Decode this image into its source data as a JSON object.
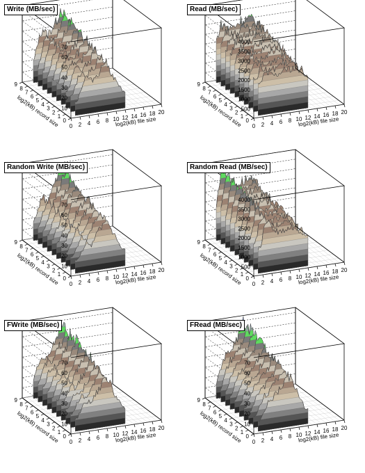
{
  "panels": [
    {
      "title": "Write (MB/sec)",
      "ytick_labels": [
        "10",
        "20",
        "30",
        "40",
        "50",
        "60",
        "70"
      ],
      "xtick_labels": [
        "0",
        "2",
        "4",
        "6",
        "8",
        "10",
        "12",
        "14",
        "16",
        "18",
        "20"
      ],
      "ztick_labels": [
        "0",
        "1",
        "2",
        "3",
        "4",
        "5",
        "6",
        "7",
        "8",
        "9"
      ],
      "xlabel": "log2(kB) file size",
      "ylabel": "log2(kB) record size"
    },
    {
      "title": "Read (MB/sec)",
      "ytick_labels": [
        "500",
        "1000",
        "1500",
        "2000",
        "2500",
        "3000",
        "3500",
        "4000"
      ],
      "xtick_labels": [
        "0",
        "2",
        "4",
        "6",
        "8",
        "10",
        "12",
        "14",
        "16",
        "18",
        "20"
      ],
      "ztick_labels": [
        "0",
        "1",
        "2",
        "3",
        "4",
        "5",
        "6",
        "7",
        "8",
        "9"
      ],
      "xlabel": "log2(kB) file size",
      "ylabel": "log2(kB) record size"
    },
    {
      "title": "Random Write (MB/sec)",
      "ytick_labels": [
        "10",
        "20",
        "30",
        "40",
        "50",
        "60",
        "70"
      ],
      "xtick_labels": [
        "0",
        "2",
        "4",
        "6",
        "8",
        "10",
        "12",
        "14",
        "16",
        "18",
        "20"
      ],
      "ztick_labels": [
        "0",
        "1",
        "2",
        "3",
        "4",
        "5",
        "6",
        "7",
        "8",
        "9"
      ],
      "xlabel": "log2(kB) file size",
      "ylabel": "log2(kB) record size"
    },
    {
      "title": "Random Read (MB/sec)",
      "ytick_labels": [
        "500",
        "1000",
        "1500",
        "2000",
        "2500",
        "3000",
        "3500",
        "4000"
      ],
      "xtick_labels": [
        "0",
        "2",
        "4",
        "6",
        "8",
        "10",
        "12",
        "14",
        "16",
        "18",
        "20"
      ],
      "ztick_labels": [
        "0",
        "1",
        "2",
        "3",
        "4",
        "5",
        "6",
        "7",
        "8",
        "9"
      ],
      "xlabel": "log2(kB) file size",
      "ylabel": "log2(kB) record size"
    },
    {
      "title": "FWrite (MB/sec)",
      "ytick_labels": [
        "10",
        "20",
        "30",
        "40",
        "50",
        "60",
        "70"
      ],
      "xtick_labels": [
        "0",
        "2",
        "4",
        "6",
        "8",
        "10",
        "12",
        "14",
        "16",
        "18",
        "20"
      ],
      "ztick_labels": [
        "0",
        "1",
        "2",
        "3",
        "4",
        "5",
        "6",
        "7",
        "8",
        "9"
      ],
      "xlabel": "log2(kB) file size",
      "ylabel": "log2(kB) record size"
    },
    {
      "title": "FRead (MB/sec)",
      "ytick_labels": [
        "10",
        "20",
        "30",
        "40",
        "50",
        "60",
        "70"
      ],
      "xtick_labels": [
        "0",
        "2",
        "4",
        "6",
        "8",
        "10",
        "12",
        "14",
        "16",
        "18",
        "20"
      ],
      "ztick_labels": [
        "0",
        "1",
        "2",
        "3",
        "4",
        "5",
        "6",
        "7",
        "8",
        "9"
      ],
      "xlabel": "log2(kB) file size",
      "ylabel": "log2(kB) record size"
    }
  ],
  "chart_data": [
    {
      "type": "surface3d",
      "title": "Write (MB/sec)",
      "xlabel": "log2(kB) file size",
      "ylabel": "log2(kB) record size",
      "xlim": [
        0,
        20
      ],
      "ylim": [
        0,
        9
      ],
      "zlim": [
        0,
        75
      ],
      "ridge_x": [
        2,
        3,
        4,
        5,
        6,
        7,
        8,
        9,
        10,
        11,
        12
      ],
      "ridge_z": [
        20,
        40,
        52,
        44,
        50,
        56,
        70,
        58,
        44,
        34,
        22
      ]
    },
    {
      "type": "surface3d",
      "title": "Read (MB/sec)",
      "xlabel": "log2(kB) file size",
      "ylabel": "log2(kB) record size",
      "xlim": [
        0,
        20
      ],
      "ylim": [
        0,
        9
      ],
      "zlim": [
        0,
        4000
      ],
      "ridge_x": [
        2,
        3,
        4,
        5,
        6,
        7,
        8,
        9,
        10,
        11,
        12
      ],
      "ridge_z": [
        2200,
        3000,
        2900,
        2700,
        2800,
        3000,
        3100,
        3100,
        3000,
        2800,
        2500
      ]
    },
    {
      "type": "surface3d",
      "title": "Random Write (MB/sec)",
      "xlabel": "log2(kB) file size",
      "ylabel": "log2(kB) record size",
      "xlim": [
        0,
        20
      ],
      "ylim": [
        0,
        9
      ],
      "zlim": [
        0,
        75
      ],
      "ridge_x": [
        2,
        3,
        4,
        5,
        6,
        7,
        8,
        9,
        10,
        11,
        12
      ],
      "ridge_z": [
        18,
        30,
        44,
        34,
        50,
        56,
        68,
        60,
        46,
        34,
        22
      ]
    },
    {
      "type": "surface3d",
      "title": "Random Read (MB/sec)",
      "xlabel": "log2(kB) file size",
      "ylabel": "log2(kB) record size",
      "xlim": [
        0,
        20
      ],
      "ylim": [
        0,
        9
      ],
      "zlim": [
        0,
        4000
      ],
      "ridge_x": [
        2,
        3,
        4,
        5,
        6,
        7,
        8,
        9,
        10,
        11,
        12
      ],
      "ridge_z": [
        1800,
        3700,
        3600,
        2900,
        2800,
        2800,
        2900,
        3000,
        2800,
        2600,
        2300
      ]
    },
    {
      "type": "surface3d",
      "title": "FWrite (MB/sec)",
      "xlabel": "log2(kB) file size",
      "ylabel": "log2(kB) record size",
      "xlim": [
        0,
        20
      ],
      "ylim": [
        0,
        9
      ],
      "zlim": [
        0,
        75
      ],
      "ridge_x": [
        2,
        3,
        4,
        5,
        6,
        7,
        8,
        9,
        10,
        11,
        12
      ],
      "ridge_z": [
        18,
        32,
        40,
        36,
        48,
        56,
        72,
        62,
        46,
        34,
        22
      ]
    },
    {
      "type": "surface3d",
      "title": "FRead (MB/sec)",
      "xlabel": "log2(kB) file size",
      "ylabel": "log2(kB) record size",
      "xlim": [
        0,
        20
      ],
      "ylim": [
        0,
        9
      ],
      "zlim": [
        0,
        75
      ],
      "ridge_x": [
        2,
        3,
        4,
        5,
        6,
        7,
        8,
        9,
        10,
        11,
        12
      ],
      "ridge_z": [
        14,
        30,
        40,
        44,
        52,
        60,
        72,
        64,
        48,
        36,
        20
      ]
    }
  ],
  "colors": {
    "band_palette": [
      "#2a2a2a",
      "#555555",
      "#808080",
      "#a8a8a8",
      "#c9c7c0",
      "#cdbfa8",
      "#b9a792",
      "#9c8272",
      "#c8bfb0",
      "#9a8a7c",
      "#7a7a7a",
      "#5fdb5f",
      "#9aaea6",
      "#7f93c8"
    ],
    "grid": "#000000",
    "floor": "#f2f2f2"
  }
}
